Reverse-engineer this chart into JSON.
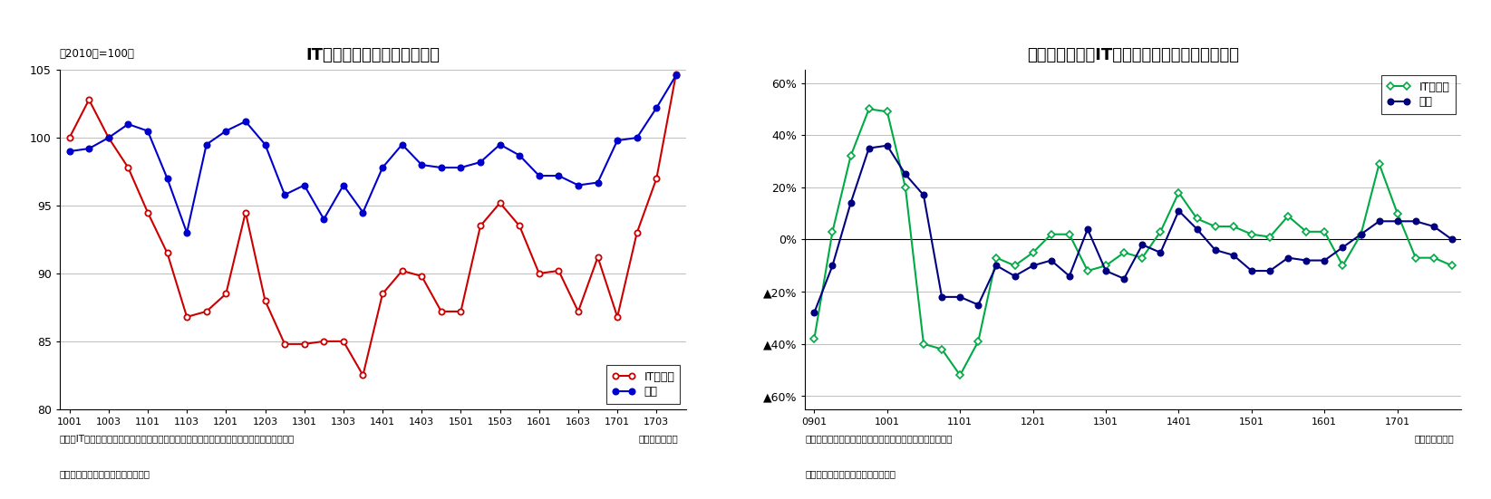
{
  "chart1": {
    "title": "IT関連財の増産ペースは鱈化",
    "subtitle": "（2010年=100）",
    "xlabel_note": "（年・四半期）",
    "note1": "（注）IT関連財は情報化関連資本財、情報化関連消費財、情報化関連生産財を合成したもの",
    "note1b": "（年・四半期）",
    "note2": "（資料）経済産業省「鉱工業指数」",
    "ylim": [
      80,
      105
    ],
    "yticks": [
      80,
      85,
      90,
      95,
      100,
      105
    ],
    "it_color": "#cc0000",
    "zentai_color": "#0000cc",
    "legend_it": "IT関連財",
    "legend_zentai": "全体"
  },
  "chart2": {
    "title": "急速に悪化したIT関連財の出荷・在庫バランス",
    "xlabel_note": "（年・四半期）",
    "note1": "（注）出荷・在庫バランス＝出荷・前年比－在庫・前年比",
    "note2": "（資料）経済産業省「鉱工業指数」",
    "ylim": [
      -0.65,
      0.65
    ],
    "ytick_labels": [
      "60%",
      "40%",
      "20%",
      "0%",
      "▲20%",
      "▲40%",
      "▲60%"
    ],
    "it_color": "#00aa44",
    "zentai_color": "#000080",
    "legend_it": "IT関連財",
    "legend_zentai": "全体"
  }
}
